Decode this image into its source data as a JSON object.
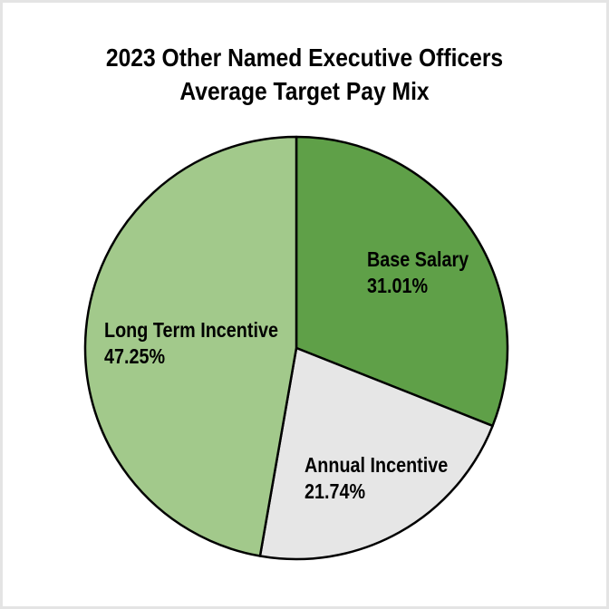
{
  "page": {
    "background_color": "#ffffff",
    "frame_border_color": "#e4e4e4"
  },
  "chart_data": {
    "type": "pie",
    "title": "2023 Other Named Executive Officers Average Target Pay Mix",
    "title_lines": [
      "2023 Other Named Executive Officers",
      "Average Target Pay Mix"
    ],
    "start_angle_deg": -90,
    "direction": "clockwise",
    "outline_color": "#000000",
    "legend_position": "none",
    "labels_on_slices": true,
    "slices": [
      {
        "label": "Base Salary",
        "value": 31.01,
        "display": "31.01%",
        "color": "#5fa048"
      },
      {
        "label": "Annual Incentive",
        "value": 21.74,
        "display": "21.74%",
        "color": "#e6e6e6"
      },
      {
        "label": "Long Term Incentive",
        "value": 47.25,
        "display": "47.25%",
        "color": "#a2c98b"
      }
    ]
  }
}
